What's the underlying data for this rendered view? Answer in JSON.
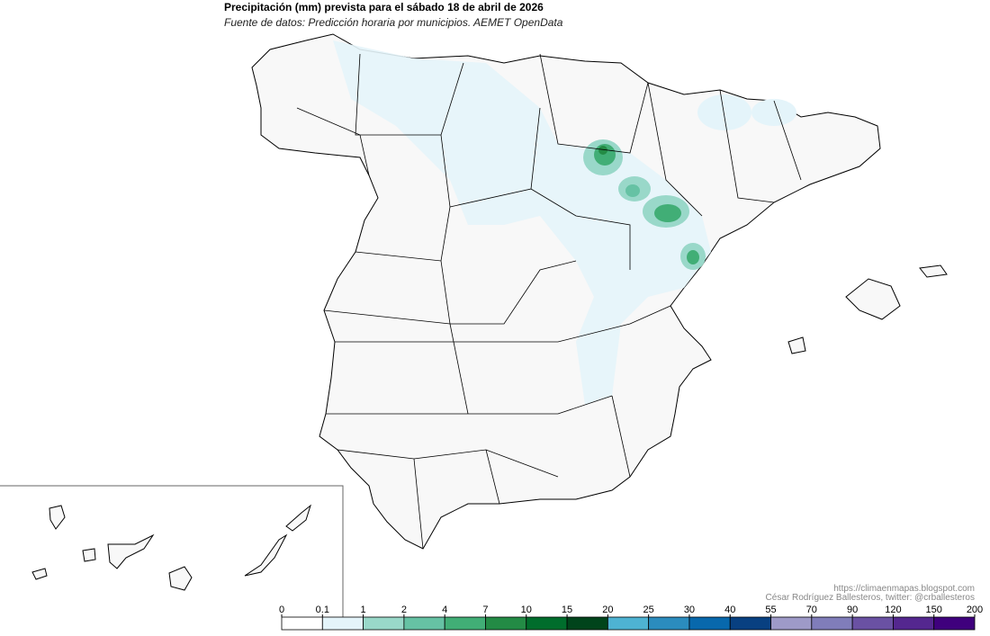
{
  "header": {
    "title": "Precipitación (mm) prevista para el sábado 18 de abril de 2026",
    "subtitle": "Fuente de datos: Predicción horaria por municipios. AEMET OpenData"
  },
  "credits": [
    "https://climaenmapas.blogspot.com",
    "César Rodríguez Ballesteros, twitter: @crballesteros"
  ],
  "legend": {
    "ticks": [
      0,
      0.1,
      1,
      2,
      4,
      7,
      10,
      15,
      20,
      25,
      30,
      40,
      55,
      70,
      90,
      120,
      150,
      200
    ],
    "colors": [
      "#ffffff",
      "#e4f4fa",
      "#99d8c9",
      "#66c2a4",
      "#41ae76",
      "#238b45",
      "#006d2c",
      "#00441b",
      "#4eb3d3",
      "#2b8cbe",
      "#0868ac",
      "#084081",
      "#9e9ac8",
      "#807dba",
      "#6a51a3",
      "#54278f",
      "#3f007d"
    ]
  }
}
